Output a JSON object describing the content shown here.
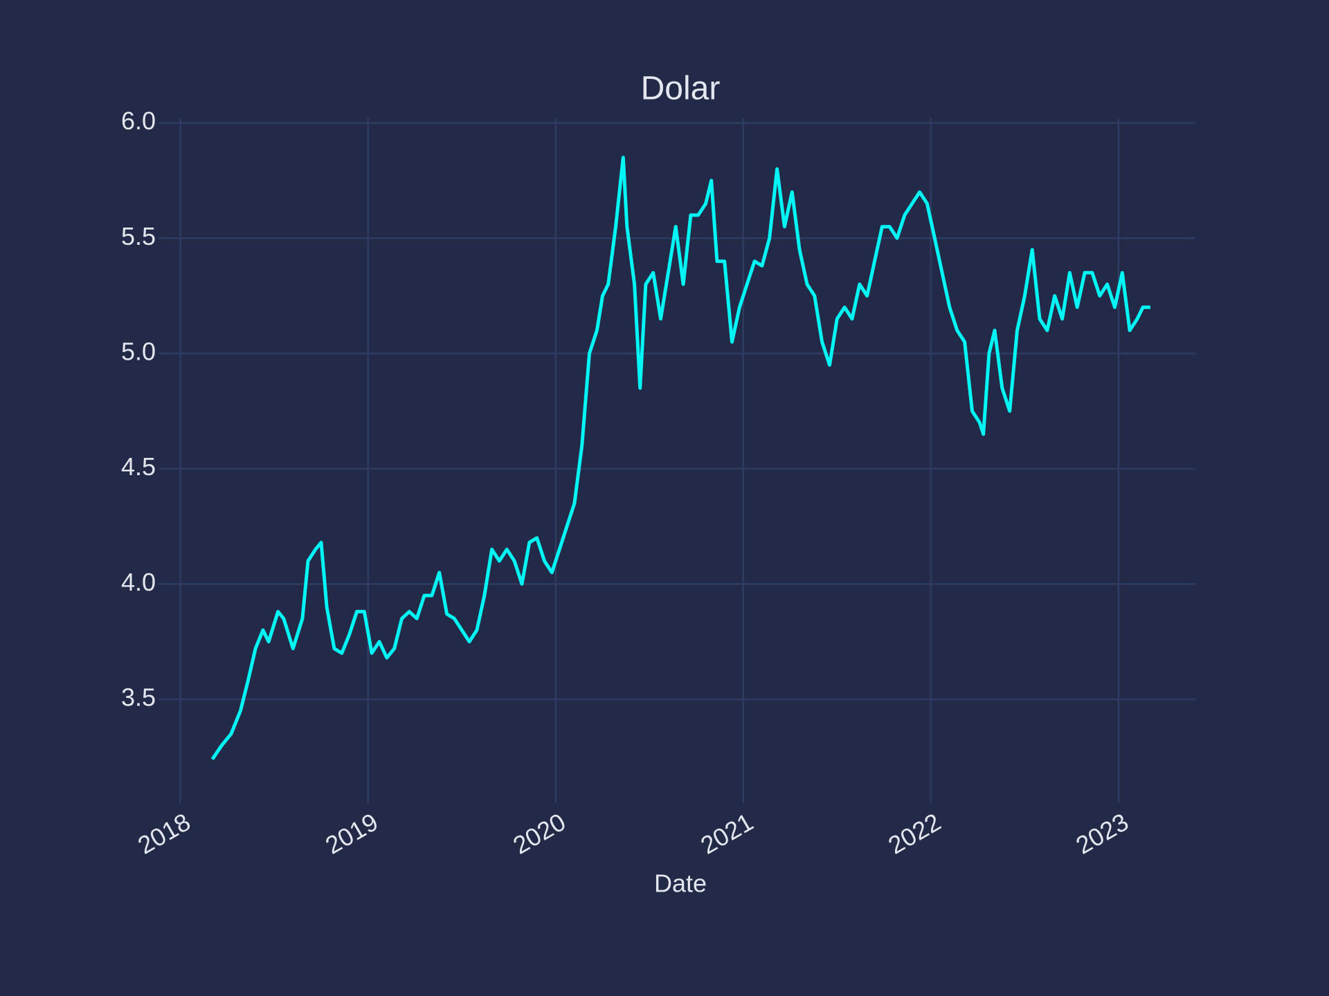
{
  "chart_data": {
    "type": "line",
    "title": "Dolar",
    "xlabel": "Date",
    "color": "#00f5f5",
    "grid": true,
    "xlim": [
      2017.92,
      2023.41
    ],
    "ylim": [
      3.08,
      6.02
    ],
    "xticks": [
      2018,
      2019,
      2020,
      2021,
      2022,
      2023
    ],
    "yticks": [
      {
        "value": 3.5,
        "label": "3.5"
      },
      {
        "value": 4,
        "label": "4.0"
      },
      {
        "value": 4.5,
        "label": "4.5"
      },
      {
        "value": 5,
        "label": "5.0"
      },
      {
        "value": 5.5,
        "label": "5.5"
      },
      {
        "value": 6,
        "label": "6.0"
      }
    ],
    "x": [
      2018.17,
      2018.22,
      2018.27,
      2018.32,
      2018.36,
      2018.4,
      2018.44,
      2018.47,
      2018.52,
      2018.55,
      2018.6,
      2018.65,
      2018.68,
      2018.72,
      2018.75,
      2018.78,
      2018.82,
      2018.86,
      2018.9,
      2018.94,
      2018.98,
      2019.02,
      2019.06,
      2019.1,
      2019.14,
      2019.18,
      2019.22,
      2019.26,
      2019.3,
      2019.34,
      2019.38,
      2019.42,
      2019.46,
      2019.5,
      2019.54,
      2019.58,
      2019.62,
      2019.66,
      2019.7,
      2019.74,
      2019.78,
      2019.82,
      2019.86,
      2019.9,
      2019.94,
      2019.98,
      2020.02,
      2020.06,
      2020.1,
      2020.14,
      2020.18,
      2020.22,
      2020.25,
      2020.28,
      2020.32,
      2020.36,
      2020.38,
      2020.42,
      2020.45,
      2020.48,
      2020.52,
      2020.56,
      2020.6,
      2020.64,
      2020.68,
      2020.72,
      2020.76,
      2020.8,
      2020.83,
      2020.86,
      2020.9,
      2020.94,
      2020.98,
      2021.02,
      2021.06,
      2021.1,
      2021.14,
      2021.18,
      2021.22,
      2021.26,
      2021.3,
      2021.34,
      2021.38,
      2021.42,
      2021.46,
      2021.5,
      2021.54,
      2021.58,
      2021.62,
      2021.66,
      2021.7,
      2021.74,
      2021.78,
      2021.82,
      2021.86,
      2021.9,
      2021.94,
      2021.98,
      2022.02,
      2022.06,
      2022.1,
      2022.14,
      2022.18,
      2022.22,
      2022.26,
      2022.28,
      2022.31,
      2022.34,
      2022.38,
      2022.42,
      2022.46,
      2022.5,
      2022.54,
      2022.58,
      2022.62,
      2022.66,
      2022.7,
      2022.74,
      2022.78,
      2022.82,
      2022.86,
      2022.9,
      2022.94,
      2022.98,
      2023.02,
      2023.06,
      2023.1,
      2023.13,
      2023.17
    ],
    "values": [
      3.24,
      3.3,
      3.35,
      3.45,
      3.58,
      3.72,
      3.8,
      3.75,
      3.88,
      3.85,
      3.72,
      3.85,
      4.1,
      4.15,
      4.18,
      3.9,
      3.72,
      3.7,
      3.78,
      3.88,
      3.88,
      3.7,
      3.75,
      3.68,
      3.72,
      3.85,
      3.88,
      3.85,
      3.95,
      3.95,
      4.05,
      3.87,
      3.85,
      3.8,
      3.75,
      3.8,
      3.95,
      4.15,
      4.1,
      4.15,
      4.1,
      4.0,
      4.18,
      4.2,
      4.1,
      4.05,
      4.15,
      4.25,
      4.35,
      4.6,
      5.0,
      5.1,
      5.25,
      5.3,
      5.55,
      5.85,
      5.55,
      5.3,
      4.85,
      5.3,
      5.35,
      5.15,
      5.35,
      5.55,
      5.3,
      5.6,
      5.6,
      5.65,
      5.75,
      5.4,
      5.4,
      5.05,
      5.2,
      5.3,
      5.4,
      5.38,
      5.5,
      5.8,
      5.55,
      5.7,
      5.45,
      5.3,
      5.25,
      5.05,
      4.95,
      5.15,
      5.2,
      5.15,
      5.3,
      5.25,
      5.4,
      5.55,
      5.55,
      5.5,
      5.6,
      5.65,
      5.7,
      5.65,
      5.5,
      5.35,
      5.2,
      5.1,
      5.05,
      4.75,
      4.7,
      4.65,
      5.0,
      5.1,
      4.85,
      4.75,
      5.1,
      5.25,
      5.45,
      5.15,
      5.1,
      5.25,
      5.15,
      5.35,
      5.2,
      5.35,
      5.35,
      5.25,
      5.3,
      5.2,
      5.35,
      5.1,
      5.15,
      5.2,
      5.2
    ]
  }
}
